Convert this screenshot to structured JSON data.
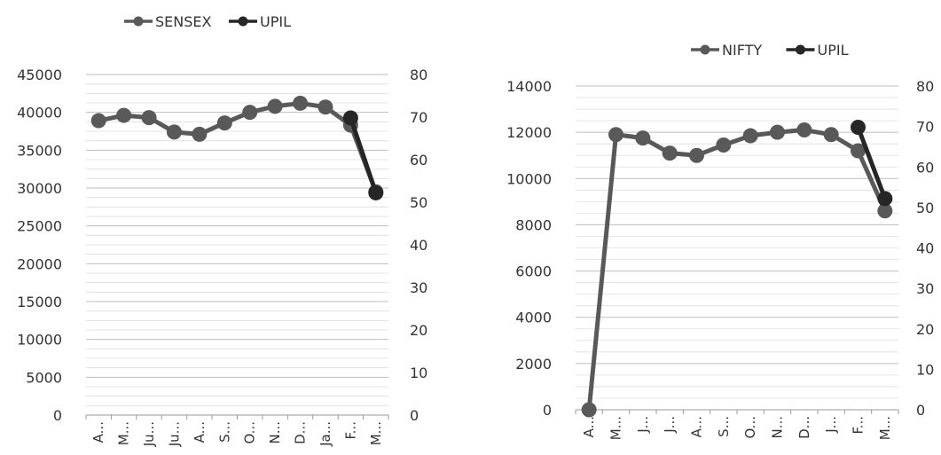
{
  "chart_data": [
    {
      "type": "line",
      "categories": [
        "A...",
        "M...",
        "Ju...",
        "Ju...",
        "A...",
        "S...",
        "O...",
        "N...",
        "D...",
        "Ja...",
        "F...",
        "M..."
      ],
      "legend_position": "top",
      "grid": true,
      "y_left": {
        "min": 0,
        "max": 45000,
        "ticks": [
          "0",
          "5000",
          "10000",
          "15000",
          "20000",
          "25000",
          "30000",
          "35000",
          "40000",
          "45000"
        ]
      },
      "y_right": {
        "min": 0,
        "max": 80,
        "ticks": [
          "0",
          "10",
          "20",
          "30",
          "40",
          "50",
          "60",
          "70",
          "80"
        ]
      },
      "series": [
        {
          "name": "SENSEX",
          "axis": "left",
          "color": "#595959",
          "values": [
            38900,
            39600,
            39300,
            37400,
            37100,
            38600,
            40000,
            40800,
            41200,
            40700,
            38300,
            29500
          ]
        },
        {
          "name": "UPIL",
          "axis": "right",
          "color": "#262626",
          "values": [
            null,
            null,
            null,
            null,
            null,
            null,
            null,
            null,
            null,
            null,
            69.8,
            52.2
          ]
        }
      ]
    },
    {
      "type": "line",
      "categories": [
        "A...",
        "M...",
        "J...",
        "J...",
        "A...",
        "S...",
        "O...",
        "N...",
        "D...",
        "J...",
        "F...",
        "M..."
      ],
      "legend_position": "top-right",
      "grid": true,
      "y_left": {
        "min": 0,
        "max": 14000,
        "ticks": [
          "0",
          "2000",
          "4000",
          "6000",
          "8000",
          "10000",
          "12000",
          "14000"
        ]
      },
      "y_right": {
        "min": 0,
        "max": 80,
        "ticks": [
          "0",
          "10",
          "20",
          "30",
          "40",
          "50",
          "60",
          "70",
          "80"
        ]
      },
      "series": [
        {
          "name": "NIFTY",
          "axis": "left",
          "color": "#595959",
          "values": [
            0,
            11900,
            11750,
            11100,
            11000,
            11450,
            11850,
            12000,
            12100,
            11900,
            11200,
            8600
          ]
        },
        {
          "name": "UPIL",
          "axis": "right",
          "color": "#262626",
          "values": [
            null,
            null,
            null,
            null,
            null,
            null,
            null,
            null,
            null,
            null,
            69.8,
            52.2
          ]
        }
      ]
    }
  ]
}
